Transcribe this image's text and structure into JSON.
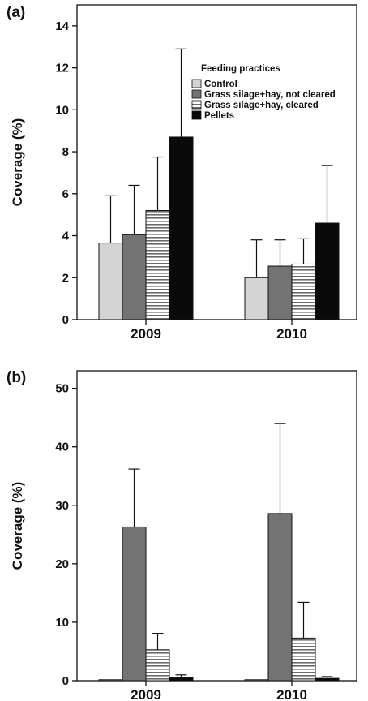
{
  "chart_data": [
    {
      "type": "bar",
      "panel_label": "(a)",
      "categories": [
        "2009",
        "2010"
      ],
      "ylabel": "Coverage (%)",
      "ylim": [
        0,
        15
      ],
      "yticks": [
        0,
        2,
        4,
        6,
        8,
        10,
        12,
        14
      ],
      "legend": {
        "title": "Feeding practices",
        "placement": "top-right",
        "visible": true
      },
      "series": [
        {
          "name": "Control",
          "fill": "light-gray",
          "values": [
            3.65,
            2.0
          ],
          "errors": [
            2.25,
            1.8
          ]
        },
        {
          "name": "Grass silage+hay, not cleared",
          "fill": "dark-gray",
          "values": [
            4.05,
            2.55
          ],
          "errors": [
            2.35,
            1.25
          ]
        },
        {
          "name": "Grass silage+hay, cleared",
          "fill": "horizontal-stripes",
          "values": [
            5.2,
            2.65
          ],
          "errors": [
            2.55,
            1.2
          ]
        },
        {
          "name": "Pellets",
          "fill": "black",
          "values": [
            8.7,
            4.6
          ],
          "errors": [
            4.2,
            2.75
          ]
        }
      ]
    },
    {
      "type": "bar",
      "panel_label": "(b)",
      "categories": [
        "2009",
        "2010"
      ],
      "ylabel": "Coverage (%)",
      "ylim": [
        0,
        53
      ],
      "yticks": [
        0,
        10,
        20,
        30,
        40,
        50
      ],
      "legend": {
        "visible": false
      },
      "series": [
        {
          "name": "Control",
          "fill": "light-gray",
          "values": [
            0.0,
            0.0
          ],
          "errors": [
            0,
            0
          ]
        },
        {
          "name": "Grass silage+hay, not cleared",
          "fill": "dark-gray",
          "values": [
            26.3,
            28.6
          ],
          "errors": [
            9.9,
            15.4
          ]
        },
        {
          "name": "Grass silage+hay, cleared",
          "fill": "horizontal-stripes",
          "values": [
            5.3,
            7.3
          ],
          "errors": [
            2.8,
            6.1
          ]
        },
        {
          "name": "Pellets",
          "fill": "black",
          "values": [
            0.5,
            0.4
          ],
          "errors": [
            0.5,
            0.3
          ]
        }
      ]
    }
  ],
  "colors": {
    "light-gray": "#d4d4d4",
    "dark-gray": "#737373",
    "black": "#0a0a0a",
    "stripe": "#6a6a6a",
    "axis": "#111111"
  }
}
